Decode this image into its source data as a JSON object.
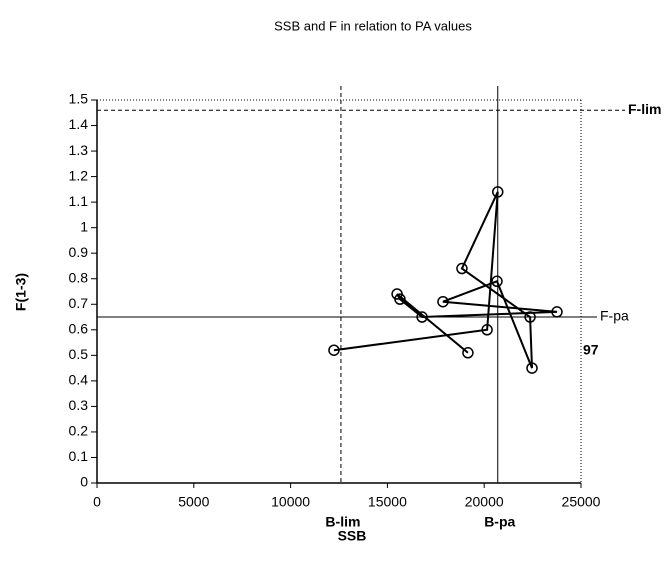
{
  "chart_data": {
    "type": "line",
    "title": "SSB and F in relation to PA values",
    "x_label": "SSB",
    "y_label": "F(1-3)",
    "x": [
      19160,
      15500,
      15650,
      16790,
      23760,
      17870,
      20660,
      22470,
      22370,
      18850,
      20700,
      20150,
      12240
    ],
    "series": [
      {
        "color": "#000000",
        "values": [
          0.51,
          0.74,
          0.72,
          0.65,
          0.67,
          0.71,
          0.79,
          0.45,
          0.65,
          0.84,
          1.14,
          0.6,
          0.52
        ]
      }
    ],
    "xlim": [
      0,
      25000
    ],
    "xticks": [
      0,
      5000,
      10000,
      15000,
      20000,
      25000
    ],
    "ylim": [
      0,
      1.5
    ],
    "yticks": [
      0,
      0.1,
      0.2,
      0.3,
      0.4,
      0.5,
      0.6,
      0.7,
      0.8,
      0.9,
      1,
      1.1,
      1.2,
      1.3,
      1.4,
      1.5
    ],
    "reference_lines": [
      {
        "label": "B-lim",
        "axis": "x",
        "value": 12600,
        "style": "dashed"
      },
      {
        "label": "B-pa",
        "axis": "x",
        "value": 20700,
        "style": "solid"
      },
      {
        "label": "F-lim",
        "axis": "y",
        "value": 1.46,
        "style": "dashed"
      },
      {
        "label": "F-pa",
        "axis": "y",
        "value": 0.65,
        "style": "solid"
      }
    ],
    "annotations": [
      "97"
    ]
  }
}
